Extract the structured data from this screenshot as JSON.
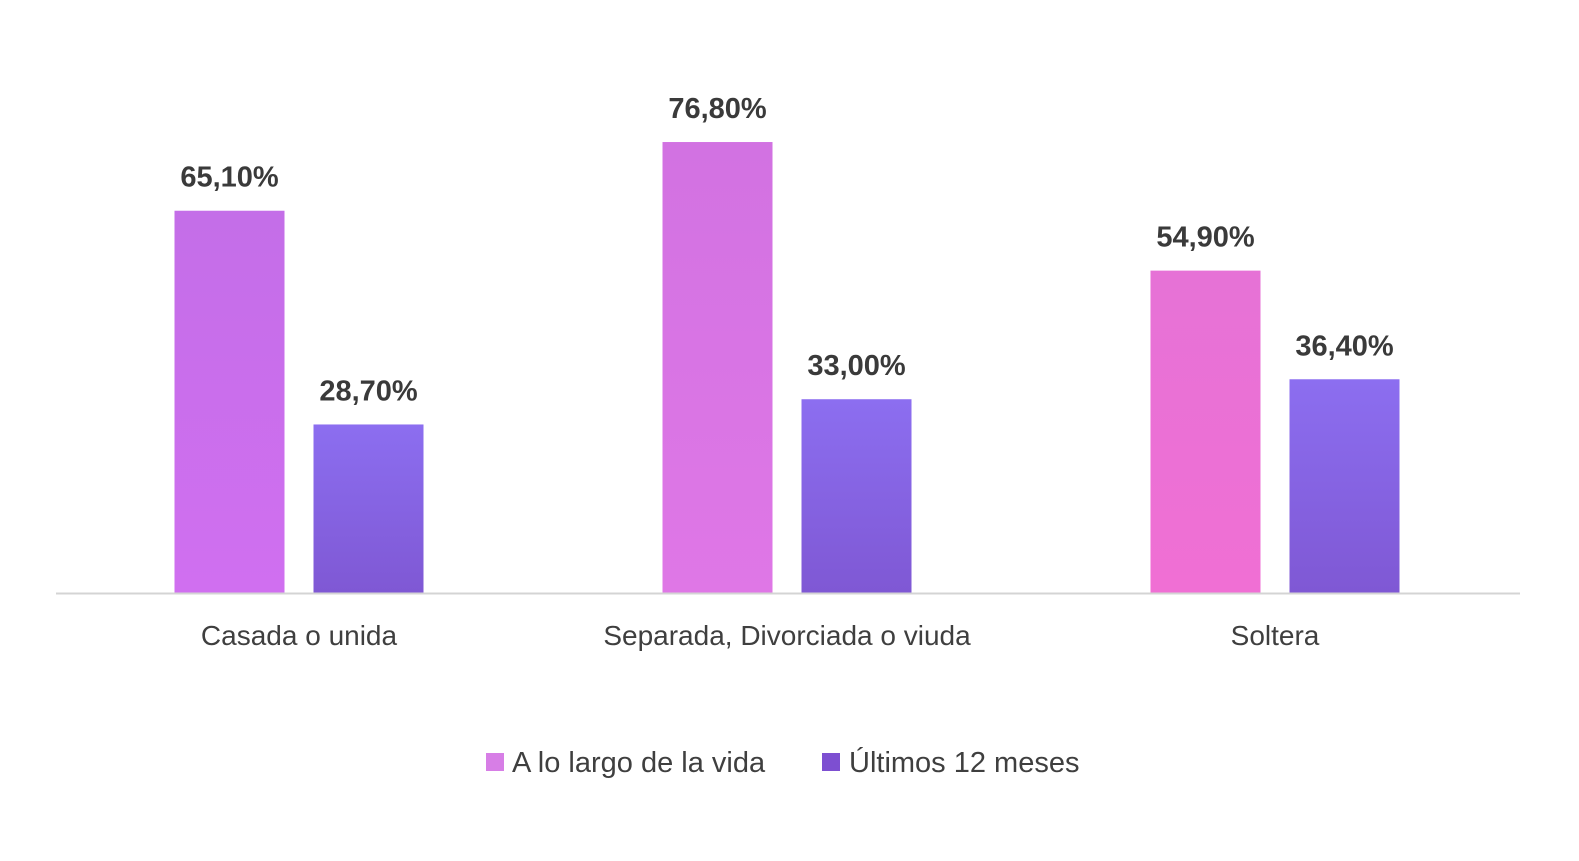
{
  "chart_data": {
    "type": "bar",
    "categories": [
      "Casada o unida",
      "Separada, Divorciada o viuda",
      "Soltera"
    ],
    "series": [
      {
        "name": "A lo largo de la vida",
        "values": [
          65.1,
          76.8,
          54.9
        ],
        "labels": [
          "65,10%",
          "76,80%",
          "54,90%"
        ],
        "color_top": [
          "#c46ee8",
          "#d272e2",
          "#e672d6"
        ],
        "color_bottom": [
          "#d06ff0",
          "#df77e6",
          "#f06fd4"
        ]
      },
      {
        "name": "Últimos 12 meses",
        "values": [
          28.7,
          33.0,
          36.4
        ],
        "labels": [
          "28,70%",
          "33,00%",
          "36,40%"
        ],
        "color_top": [
          "#8c6ef0",
          "#8c6ef0",
          "#8c6ef0"
        ],
        "color_bottom": [
          "#7f58d4",
          "#7f58d4",
          "#7f58d4"
        ]
      }
    ],
    "ylim": [
      0,
      85
    ],
    "grid": false,
    "legend_position": "bottom",
    "axis_color": "#d4d4d4",
    "label_color": "#3a3a3a"
  },
  "legend": {
    "items": [
      {
        "label": "A lo largo de la vida",
        "color": "#d77ee6"
      },
      {
        "label": "Últimos 12 meses",
        "color": "#7d4fd1"
      }
    ]
  }
}
